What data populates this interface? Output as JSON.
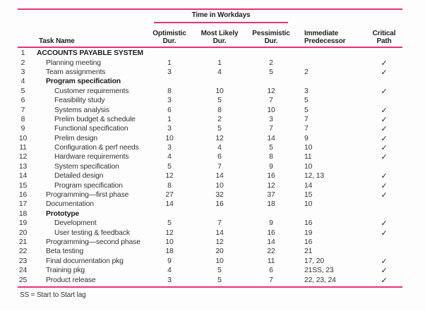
{
  "table": {
    "group_header": "Time in Workdays",
    "columns": {
      "task_name": "Task Name",
      "optimistic_line1": "Optimistic",
      "optimistic_line2": "Dur.",
      "most_likely_line1": "Most Likely",
      "most_likely_line2": "Dur.",
      "pessimistic_line1": "Pessimistic",
      "pessimistic_line2": "Dur.",
      "predecessor_line1": "Immediate",
      "predecessor_line2": "Predecessor",
      "critical_path": "Critical Path"
    },
    "check_glyph": "✓",
    "rows": [
      {
        "num": "1",
        "task": "ACCOUNTS PAYABLE SYSTEM",
        "opt": "",
        "ml": "",
        "pess": "",
        "pred": "",
        "critical": false,
        "bold": true,
        "indent": 0
      },
      {
        "num": "2",
        "task": "Planning meeting",
        "opt": "1",
        "ml": "1",
        "pess": "2",
        "pred": "",
        "critical": true,
        "bold": false,
        "indent": 1
      },
      {
        "num": "3",
        "task": "Team assignments",
        "opt": "3",
        "ml": "4",
        "pess": "5",
        "pred": "2",
        "critical": true,
        "bold": false,
        "indent": 1
      },
      {
        "num": "4",
        "task": "Program specification",
        "opt": "",
        "ml": "",
        "pess": "",
        "pred": "",
        "critical": false,
        "bold": true,
        "indent": 1
      },
      {
        "num": "5",
        "task": "Customer requirements",
        "opt": "8",
        "ml": "10",
        "pess": "12",
        "pred": "3",
        "critical": true,
        "bold": false,
        "indent": 2
      },
      {
        "num": "6",
        "task": "Feasibility study",
        "opt": "3",
        "ml": "5",
        "pess": "7",
        "pred": "5",
        "critical": false,
        "bold": false,
        "indent": 2
      },
      {
        "num": "7",
        "task": "Systems analysis",
        "opt": "6",
        "ml": "8",
        "pess": "10",
        "pred": "5",
        "critical": true,
        "bold": false,
        "indent": 2
      },
      {
        "num": "8",
        "task": "Prelim budget & schedule",
        "opt": "1",
        "ml": "2",
        "pess": "3",
        "pred": "7",
        "critical": true,
        "bold": false,
        "indent": 2
      },
      {
        "num": "9",
        "task": "Functional specification",
        "opt": "3",
        "ml": "5",
        "pess": "7",
        "pred": "7",
        "critical": true,
        "bold": false,
        "indent": 2
      },
      {
        "num": "10",
        "task": "Prelim design",
        "opt": "10",
        "ml": "12",
        "pess": "14",
        "pred": "9",
        "critical": true,
        "bold": false,
        "indent": 2
      },
      {
        "num": "11",
        "task": "Configuration & perf needs",
        "opt": "3",
        "ml": "4",
        "pess": "5",
        "pred": "10",
        "critical": true,
        "bold": false,
        "indent": 2
      },
      {
        "num": "12",
        "task": "Hardware requirements",
        "opt": "4",
        "ml": "6",
        "pess": "8",
        "pred": "11",
        "critical": true,
        "bold": false,
        "indent": 2
      },
      {
        "num": "13",
        "task": "System specification",
        "opt": "5",
        "ml": "7",
        "pess": "9",
        "pred": "10",
        "critical": false,
        "bold": false,
        "indent": 2
      },
      {
        "num": "14",
        "task": "Detailed design",
        "opt": "12",
        "ml": "14",
        "pess": "16",
        "pred": "12, 13",
        "critical": true,
        "bold": false,
        "indent": 2
      },
      {
        "num": "15",
        "task": "Program specification",
        "opt": "8",
        "ml": "10",
        "pess": "12",
        "pred": "14",
        "critical": true,
        "bold": false,
        "indent": 2
      },
      {
        "num": "16",
        "task": "Programming—first phase",
        "opt": "27",
        "ml": "32",
        "pess": "37",
        "pred": "15",
        "critical": true,
        "bold": false,
        "indent": 1
      },
      {
        "num": "17",
        "task": "Documentation",
        "opt": "14",
        "ml": "16",
        "pess": "18",
        "pred": "10",
        "critical": false,
        "bold": false,
        "indent": 1
      },
      {
        "num": "18",
        "task": "Prototype",
        "opt": "",
        "ml": "",
        "pess": "",
        "pred": "",
        "critical": false,
        "bold": true,
        "indent": 1
      },
      {
        "num": "19",
        "task": "Development",
        "opt": "5",
        "ml": "7",
        "pess": "9",
        "pred": "16",
        "critical": true,
        "bold": false,
        "indent": 2
      },
      {
        "num": "20",
        "task": "User testing & feedback",
        "opt": "12",
        "ml": "14",
        "pess": "16",
        "pred": "19",
        "critical": true,
        "bold": false,
        "indent": 2
      },
      {
        "num": "21",
        "task": "Programming—second phase",
        "opt": "10",
        "ml": "12",
        "pess": "14",
        "pred": "16",
        "critical": false,
        "bold": false,
        "indent": 1
      },
      {
        "num": "22",
        "task": "Beta testing",
        "opt": "18",
        "ml": "20",
        "pess": "22",
        "pred": "21",
        "critical": false,
        "bold": false,
        "indent": 1
      },
      {
        "num": "23",
        "task": "Final documentation pkg",
        "opt": "9",
        "ml": "10",
        "pess": "11",
        "pred": "17, 20",
        "critical": true,
        "bold": false,
        "indent": 1
      },
      {
        "num": "24",
        "task": "Training pkg",
        "opt": "4",
        "ml": "5",
        "pess": "6",
        "pred": "21SS, 23",
        "critical": true,
        "bold": false,
        "indent": 1
      },
      {
        "num": "25",
        "task": "Product release",
        "opt": "3",
        "ml": "5",
        "pess": "7",
        "pred": "22, 23, 24",
        "critical": true,
        "bold": false,
        "indent": 1
      }
    ],
    "footnote": "SS = Start to Start lag"
  },
  "colors": {
    "rule_magenta": "#e73179",
    "text": "#333333"
  }
}
